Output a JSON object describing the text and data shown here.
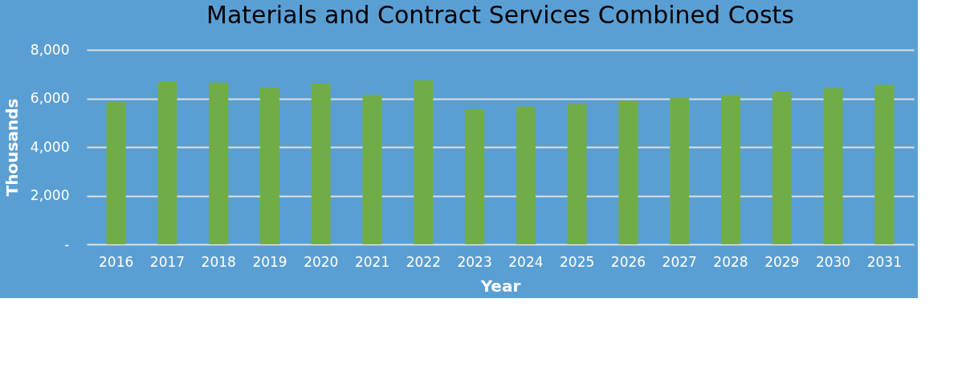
{
  "chart_data": {
    "type": "bar",
    "title": "Materials and Contract Services Combined Costs",
    "xlabel": "Year",
    "ylabel": "Thousands",
    "categories": [
      "2016",
      "2017",
      "2018",
      "2019",
      "2020",
      "2021",
      "2022",
      "2023",
      "2024",
      "2025",
      "2026",
      "2027",
      "2028",
      "2029",
      "2030",
      "2031"
    ],
    "values": [
      5850,
      6680,
      6650,
      6450,
      6610,
      6150,
      6740,
      5550,
      5660,
      5770,
      5900,
      6030,
      6150,
      6280,
      6420,
      6550
    ],
    "color": "#70ad47",
    "ylim": [
      0,
      8000
    ],
    "yticks": [
      {
        "value": 0,
        "label": "-"
      },
      {
        "value": 2000,
        "label": "2,000"
      },
      {
        "value": 4000,
        "label": "4,000"
      },
      {
        "value": 6000,
        "label": "6,000"
      },
      {
        "value": 8000,
        "label": "8,000"
      }
    ],
    "grid": "y",
    "legend": false
  }
}
